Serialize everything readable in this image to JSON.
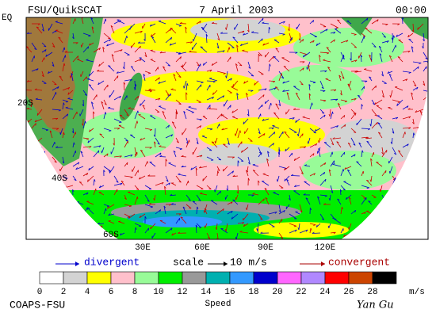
{
  "header": {
    "title": "FSU/QuikSCAT",
    "date": "7 April 2003",
    "time": "00:00"
  },
  "map": {
    "lat_labels": [
      "EQ",
      "20S",
      "40S",
      "60S"
    ],
    "lon_labels": [
      "30E",
      "60E",
      "90E",
      "120E"
    ]
  },
  "legend": {
    "divergent": "divergent",
    "scale": "scale",
    "scale_value": "10 m/s",
    "convergent": "convergent",
    "colors": [
      "#ffffff",
      "#d3d3d3",
      "#ffff00",
      "#ffc0cb",
      "#98fb98",
      "#00ee00",
      "#999999",
      "#00b0b0",
      "#3399ff",
      "#0000cc",
      "#ff66ff",
      "#b088ff",
      "#ff0000",
      "#cc4400",
      "#000000"
    ],
    "ticks": [
      0,
      2,
      4,
      6,
      8,
      10,
      12,
      14,
      16,
      18,
      20,
      22,
      24,
      26,
      28
    ],
    "unit": "m/s",
    "label": "Speed"
  },
  "footer": {
    "credit": "COAPS-FSU",
    "signature": "Yan Gu"
  }
}
